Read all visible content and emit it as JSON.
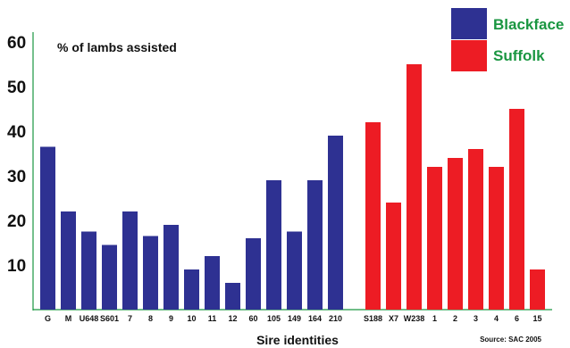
{
  "chart_data": {
    "type": "bar",
    "annotation": "% of lambs assisted",
    "xlabel": "Sire identities",
    "source": "Source: SAC 2005",
    "ylim": [
      0,
      60
    ],
    "yticks": [
      10,
      20,
      30,
      40,
      50,
      60
    ],
    "legend_position": "top-right",
    "series": [
      {
        "name": "Blackface",
        "color": "#2e3192",
        "label_color": "#1a9641",
        "categories": [
          "G",
          "M",
          "U648",
          "S601",
          "7",
          "8",
          "9",
          "10",
          "11",
          "12",
          "60",
          "105",
          "149",
          "164",
          "210"
        ],
        "values": [
          36.5,
          22,
          17.5,
          14.5,
          22,
          16.5,
          19,
          9,
          12,
          6,
          16,
          29,
          17.5,
          29,
          39
        ]
      },
      {
        "name": "Suffolk",
        "color": "#ed1c24",
        "label_color": "#1a9641",
        "categories": [
          "S188",
          "X7",
          "W238",
          "1",
          "2",
          "3",
          "4",
          "6",
          "15"
        ],
        "values": [
          42,
          24,
          55,
          32,
          34,
          36,
          32,
          45,
          9
        ]
      }
    ]
  }
}
